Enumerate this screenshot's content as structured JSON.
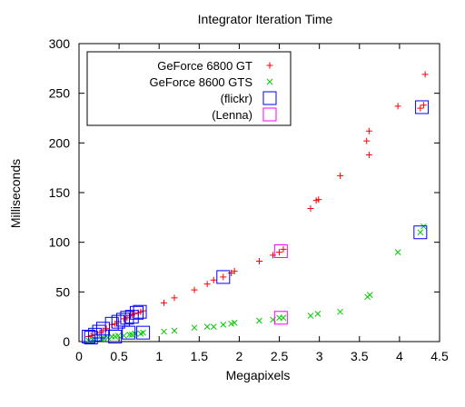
{
  "chart_data": {
    "type": "scatter",
    "title": "Integrator Iteration Time",
    "xlabel": "Megapixels",
    "ylabel": "Milliseconds",
    "xlim": [
      0,
      4.5
    ],
    "ylim": [
      0,
      300
    ],
    "xticks": [
      "0",
      "0.5",
      "1",
      "1.5",
      "2",
      "2.5",
      "3",
      "3.5",
      "4",
      "4.5"
    ],
    "yticks": [
      "0",
      "50",
      "100",
      "150",
      "200",
      "250",
      "300"
    ],
    "grid": false,
    "legend_position": "top-left",
    "series": [
      {
        "name": "GeForce 6800 GT",
        "marker": "plus",
        "color": "#ff0000",
        "x": [
          0.12,
          0.15,
          0.2,
          0.26,
          0.3,
          0.34,
          0.41,
          0.45,
          0.49,
          0.56,
          0.6,
          0.63,
          0.66,
          0.69,
          0.74,
          0.77,
          0.8,
          1.06,
          1.19,
          1.44,
          1.6,
          1.68,
          1.8,
          1.9,
          1.94,
          2.25,
          2.42,
          2.5,
          2.55,
          2.89,
          2.96,
          2.99,
          3.26,
          3.59,
          3.62,
          3.62,
          3.98,
          4.26,
          4.32,
          4.3
        ],
        "y": [
          5,
          6,
          7,
          9,
          11,
          13,
          17,
          18,
          20,
          23,
          24,
          26,
          27,
          28,
          29,
          30,
          31,
          39,
          44,
          52,
          58,
          62,
          65,
          69,
          71,
          81,
          87,
          90,
          93,
          134,
          142,
          143,
          167,
          202,
          212,
          188,
          237,
          235,
          269,
          238
        ]
      },
      {
        "name": "GeForce 8600 GTS",
        "marker": "cross",
        "color": "#00cc00",
        "x": [
          0.12,
          0.17,
          0.2,
          0.28,
          0.31,
          0.36,
          0.41,
          0.45,
          0.49,
          0.56,
          0.63,
          0.66,
          0.7,
          0.77,
          0.8,
          1.06,
          1.19,
          1.44,
          1.6,
          1.68,
          1.8,
          1.9,
          1.94,
          2.25,
          2.42,
          2.5,
          2.55,
          2.89,
          2.98,
          3.26,
          3.6,
          3.63,
          3.98,
          4.26,
          4.3
        ],
        "y": [
          1,
          2,
          2,
          3,
          3,
          4,
          5,
          5,
          6,
          6,
          7,
          7,
          8,
          8,
          9,
          10,
          11,
          14,
          15,
          15,
          17,
          18,
          19,
          21,
          22,
          24,
          24,
          26,
          28,
          30,
          45,
          47,
          90,
          110,
          116
        ]
      },
      {
        "name": "(flickr)",
        "marker": "square",
        "color": "#0000ff",
        "x": [
          0.12,
          0.15,
          0.2,
          0.25,
          0.3,
          0.41,
          0.45,
          0.49,
          0.55,
          0.6,
          0.62,
          0.66,
          0.72,
          0.76,
          0.8,
          1.8,
          4.28,
          4.26
        ],
        "y": [
          5,
          4,
          7,
          10,
          13,
          18,
          5,
          20,
          22,
          24,
          9,
          25,
          29,
          30,
          9,
          65,
          236,
          110
        ]
      },
      {
        "name": "(Lenna)",
        "marker": "square",
        "color": "#ff00ff",
        "x": [
          2.52,
          2.52
        ],
        "y": [
          91,
          24
        ]
      }
    ]
  }
}
